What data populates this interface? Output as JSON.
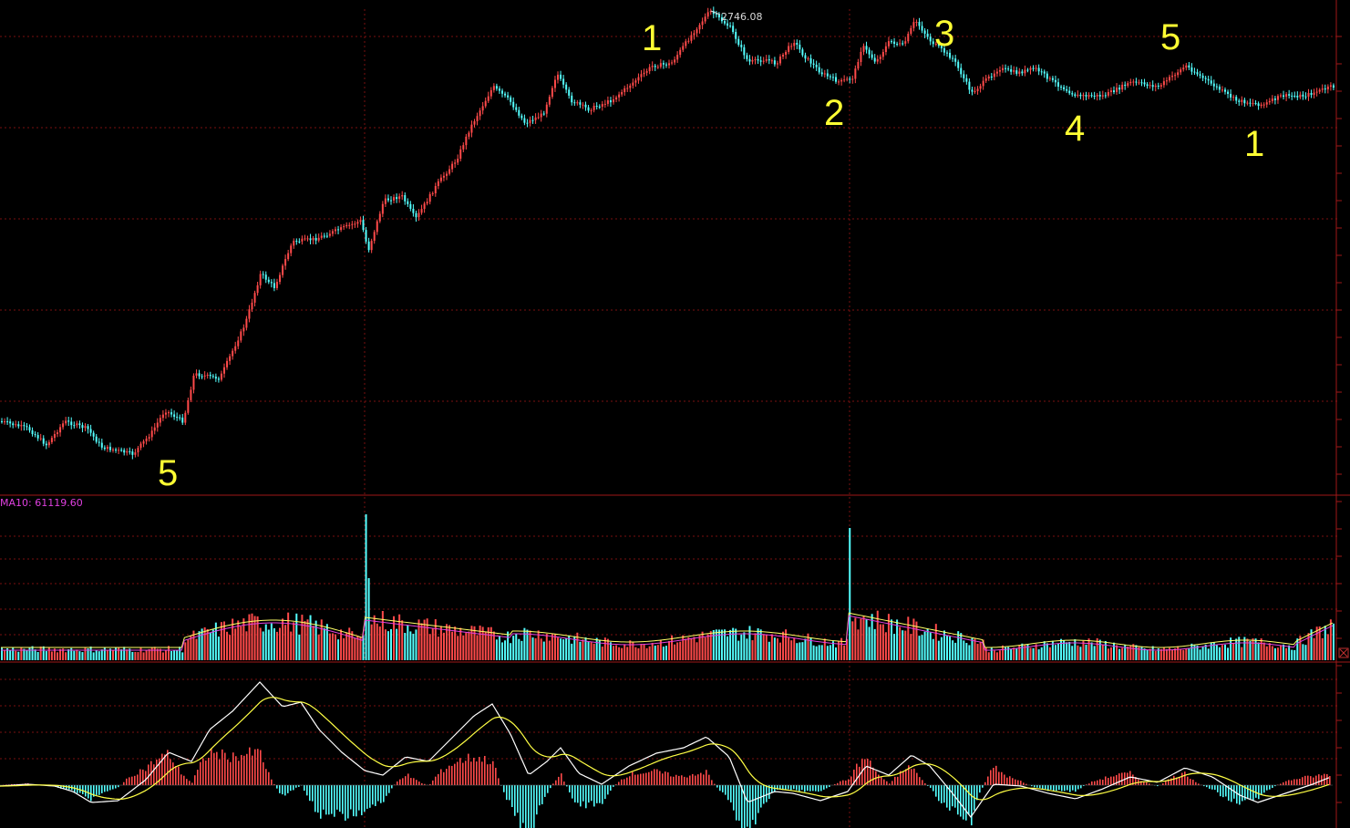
{
  "chart_data": {
    "type": "line",
    "peak_label": "2746.08",
    "volume_label": "MA10: 61119.60",
    "wave_labels": [
      "5",
      "1",
      "2",
      "3",
      "4",
      "5",
      "1"
    ],
    "colors": {
      "background": "#000000",
      "up": "#ff4a4a",
      "down": "#54ffff",
      "grid": "#7a1010",
      "label": "#ffff33",
      "ma_yellow": "#ffff66",
      "ma_magenta": "#e040e0"
    }
  }
}
